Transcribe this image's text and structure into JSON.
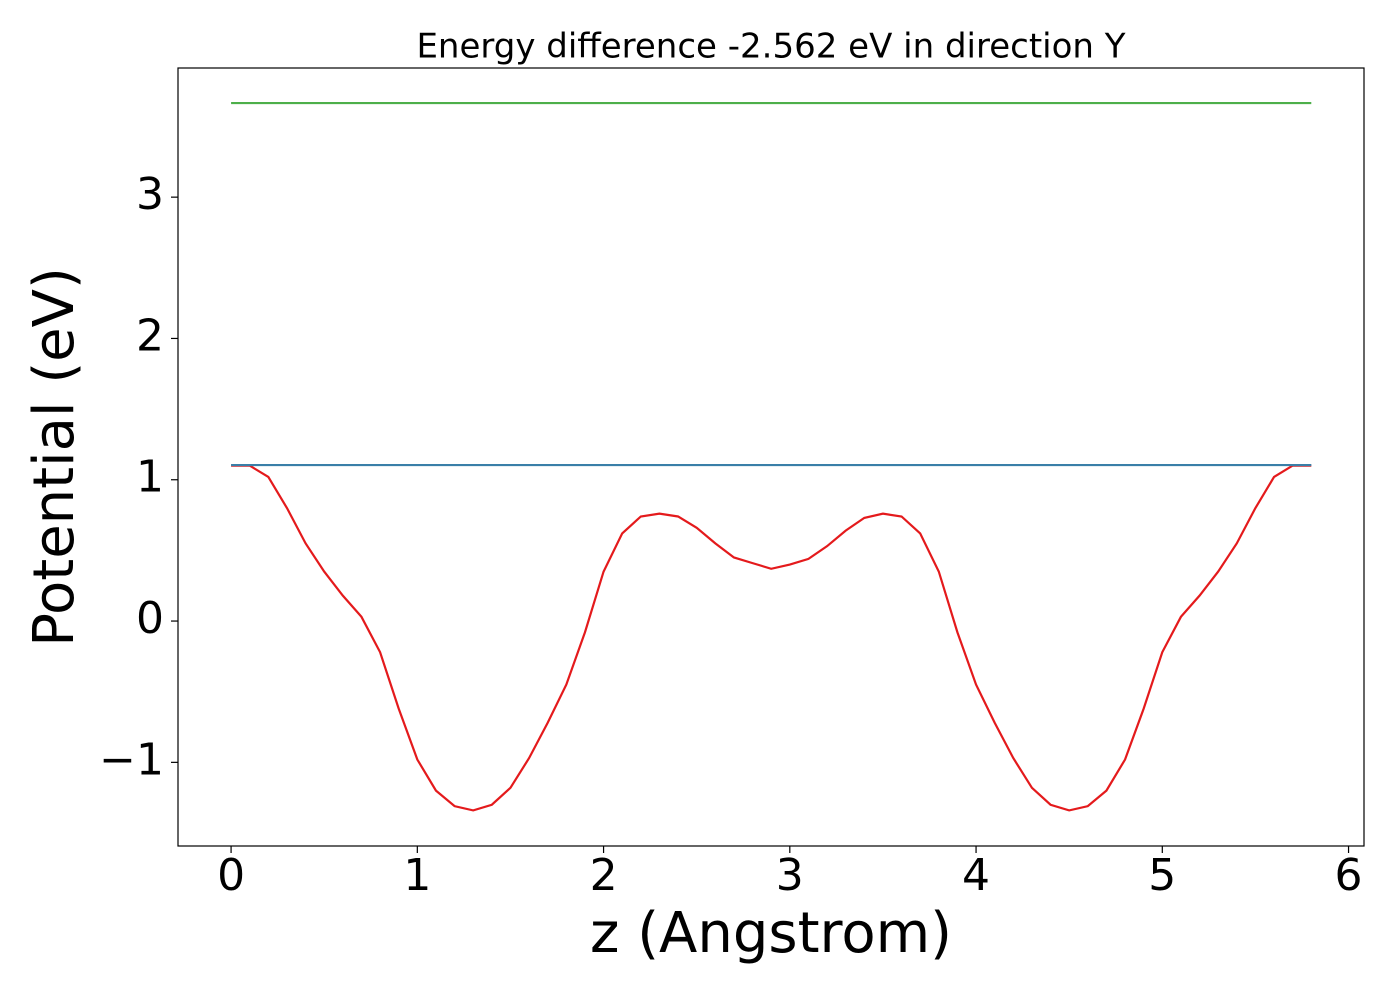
{
  "chart_data": {
    "type": "line",
    "title": "Energy difference -2.562 eV in direction Y",
    "x_label": "z (Angstrom)",
    "y_label": "Potential (eV)",
    "xlim": [
      -0.285,
      6.083
    ],
    "ylim": [
      -1.592,
      3.914
    ],
    "xticks": [
      0,
      1,
      2,
      3,
      4,
      5,
      6
    ],
    "yticks": [
      {
        "value": -1,
        "label": "−1"
      },
      0,
      1,
      2,
      3
    ],
    "grid": false,
    "series": [
      {
        "color": "#e41a1c",
        "x": [
          0,
          0.1,
          0.2,
          0.3,
          0.4,
          0.5,
          0.6,
          0.7,
          0.8,
          0.9,
          1.0,
          1.1,
          1.2,
          1.3,
          1.4,
          1.5,
          1.6,
          1.7,
          1.8,
          1.9,
          2.0,
          2.1,
          2.2,
          2.3,
          2.4,
          2.5,
          2.6,
          2.7,
          2.8,
          2.9,
          3.0,
          3.1,
          3.2,
          3.3,
          3.4,
          3.5,
          3.6,
          3.7,
          3.8,
          3.9,
          4.0,
          4.1,
          4.2,
          4.3,
          4.4,
          4.5,
          4.6,
          4.7,
          4.8,
          4.9,
          5.0,
          5.1,
          5.2,
          5.3,
          5.4,
          5.5,
          5.6,
          5.7,
          5.8
        ],
        "values": [
          1.1,
          1.1,
          1.02,
          0.8,
          0.55,
          0.35,
          0.18,
          0.03,
          -0.22,
          -0.62,
          -0.98,
          -1.2,
          -1.31,
          -1.34,
          -1.3,
          -1.18,
          -0.97,
          -0.72,
          -0.45,
          -0.08,
          0.35,
          0.62,
          0.74,
          0.76,
          0.74,
          0.66,
          0.55,
          0.45,
          0.41,
          0.37,
          0.4,
          0.44,
          0.53,
          0.64,
          0.73,
          0.76,
          0.74,
          0.62,
          0.35,
          -0.08,
          -0.45,
          -0.72,
          -0.97,
          -1.18,
          -1.3,
          -1.34,
          -1.31,
          -1.2,
          -0.98,
          -0.62,
          -0.22,
          0.03,
          0.18,
          0.35,
          0.55,
          0.8,
          1.02,
          1.1,
          1.1
        ]
      },
      {
        "color": "#4daf4a",
        "x": [
          0,
          5.8
        ],
        "values": [
          3.666,
          3.666
        ]
      },
      {
        "color": "#3a7fa8",
        "x": [
          0,
          5.8
        ],
        "values": [
          1.104,
          1.104
        ]
      }
    ]
  }
}
